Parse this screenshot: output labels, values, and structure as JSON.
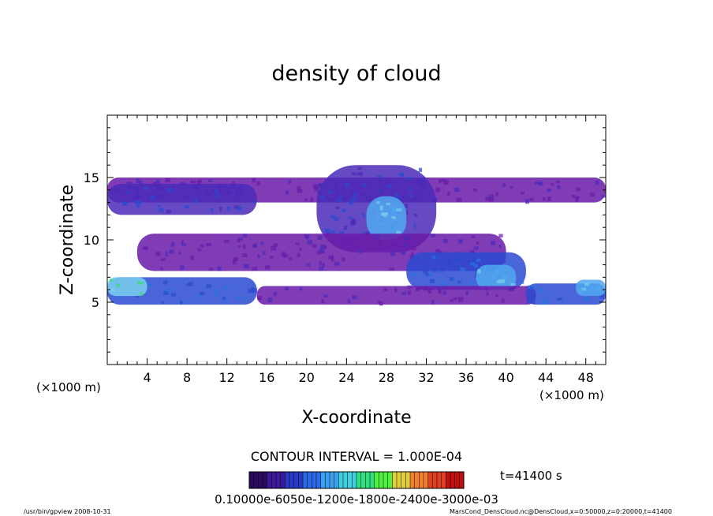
{
  "chart_data": {
    "type": "heatmap",
    "title": "density of cloud",
    "xlabel": "X-coordinate",
    "ylabel": "Z-coordinate",
    "x_unit": "(×1000 m)",
    "y_unit": "(×1000 m)",
    "xlim": [
      0,
      50
    ],
    "ylim": [
      0,
      20
    ],
    "xticks": [
      4,
      8,
      12,
      16,
      20,
      24,
      28,
      32,
      36,
      40,
      44,
      48
    ],
    "yticks": [
      5,
      10,
      15
    ],
    "contour_interval_text": "CONTOUR INTERVAL = 1.000E-04",
    "time_text": "t=41400 s",
    "colorbar": {
      "range": [
        0.0001,
        0.001
      ],
      "tick_text": "0.10000e-6050e-1200e-1800e-2400e-3000e-03",
      "colors": [
        "#2a0a5e",
        "#3a1a9a",
        "#2a3ac8",
        "#2a6ae8",
        "#3aa0f0",
        "#40d0e0",
        "#30e080",
        "#50f040",
        "#e0d040",
        "#f08030",
        "#e04020",
        "#c01010"
      ]
    },
    "cloud_regions": [
      {
        "x": [
          0,
          50
        ],
        "z": [
          13.0,
          15.0
        ],
        "level": 1
      },
      {
        "x": [
          0,
          15
        ],
        "z": [
          12.0,
          14.5
        ],
        "level": 2
      },
      {
        "x": [
          21,
          33
        ],
        "z": [
          9.0,
          16.0
        ],
        "level": 2
      },
      {
        "x": [
          26,
          30
        ],
        "z": [
          10.0,
          13.5
        ],
        "level": 5
      },
      {
        "x": [
          3,
          40
        ],
        "z": [
          7.5,
          10.5
        ],
        "level": 1
      },
      {
        "x": [
          30,
          42
        ],
        "z": [
          6.0,
          9.0
        ],
        "level": 3
      },
      {
        "x": [
          37,
          41
        ],
        "z": [
          6.0,
          8.0
        ],
        "level": 5
      },
      {
        "x": [
          0,
          15
        ],
        "z": [
          4.8,
          7.0
        ],
        "level": 3
      },
      {
        "x": [
          0,
          4
        ],
        "z": [
          5.5,
          7.0
        ],
        "level": 6
      },
      {
        "x": [
          15,
          43
        ],
        "z": [
          4.8,
          6.3
        ],
        "level": 1
      },
      {
        "x": [
          42,
          50
        ],
        "z": [
          4.8,
          6.5
        ],
        "level": 3
      },
      {
        "x": [
          47,
          50
        ],
        "z": [
          5.5,
          6.8
        ],
        "level": 5
      }
    ]
  },
  "footer": {
    "left": "/usr/bin/gpview  2008-10-31",
    "right": "MarsCond_DensCloud.nc@DensCloud,x=0:50000,z=0:20000,t=41400"
  }
}
